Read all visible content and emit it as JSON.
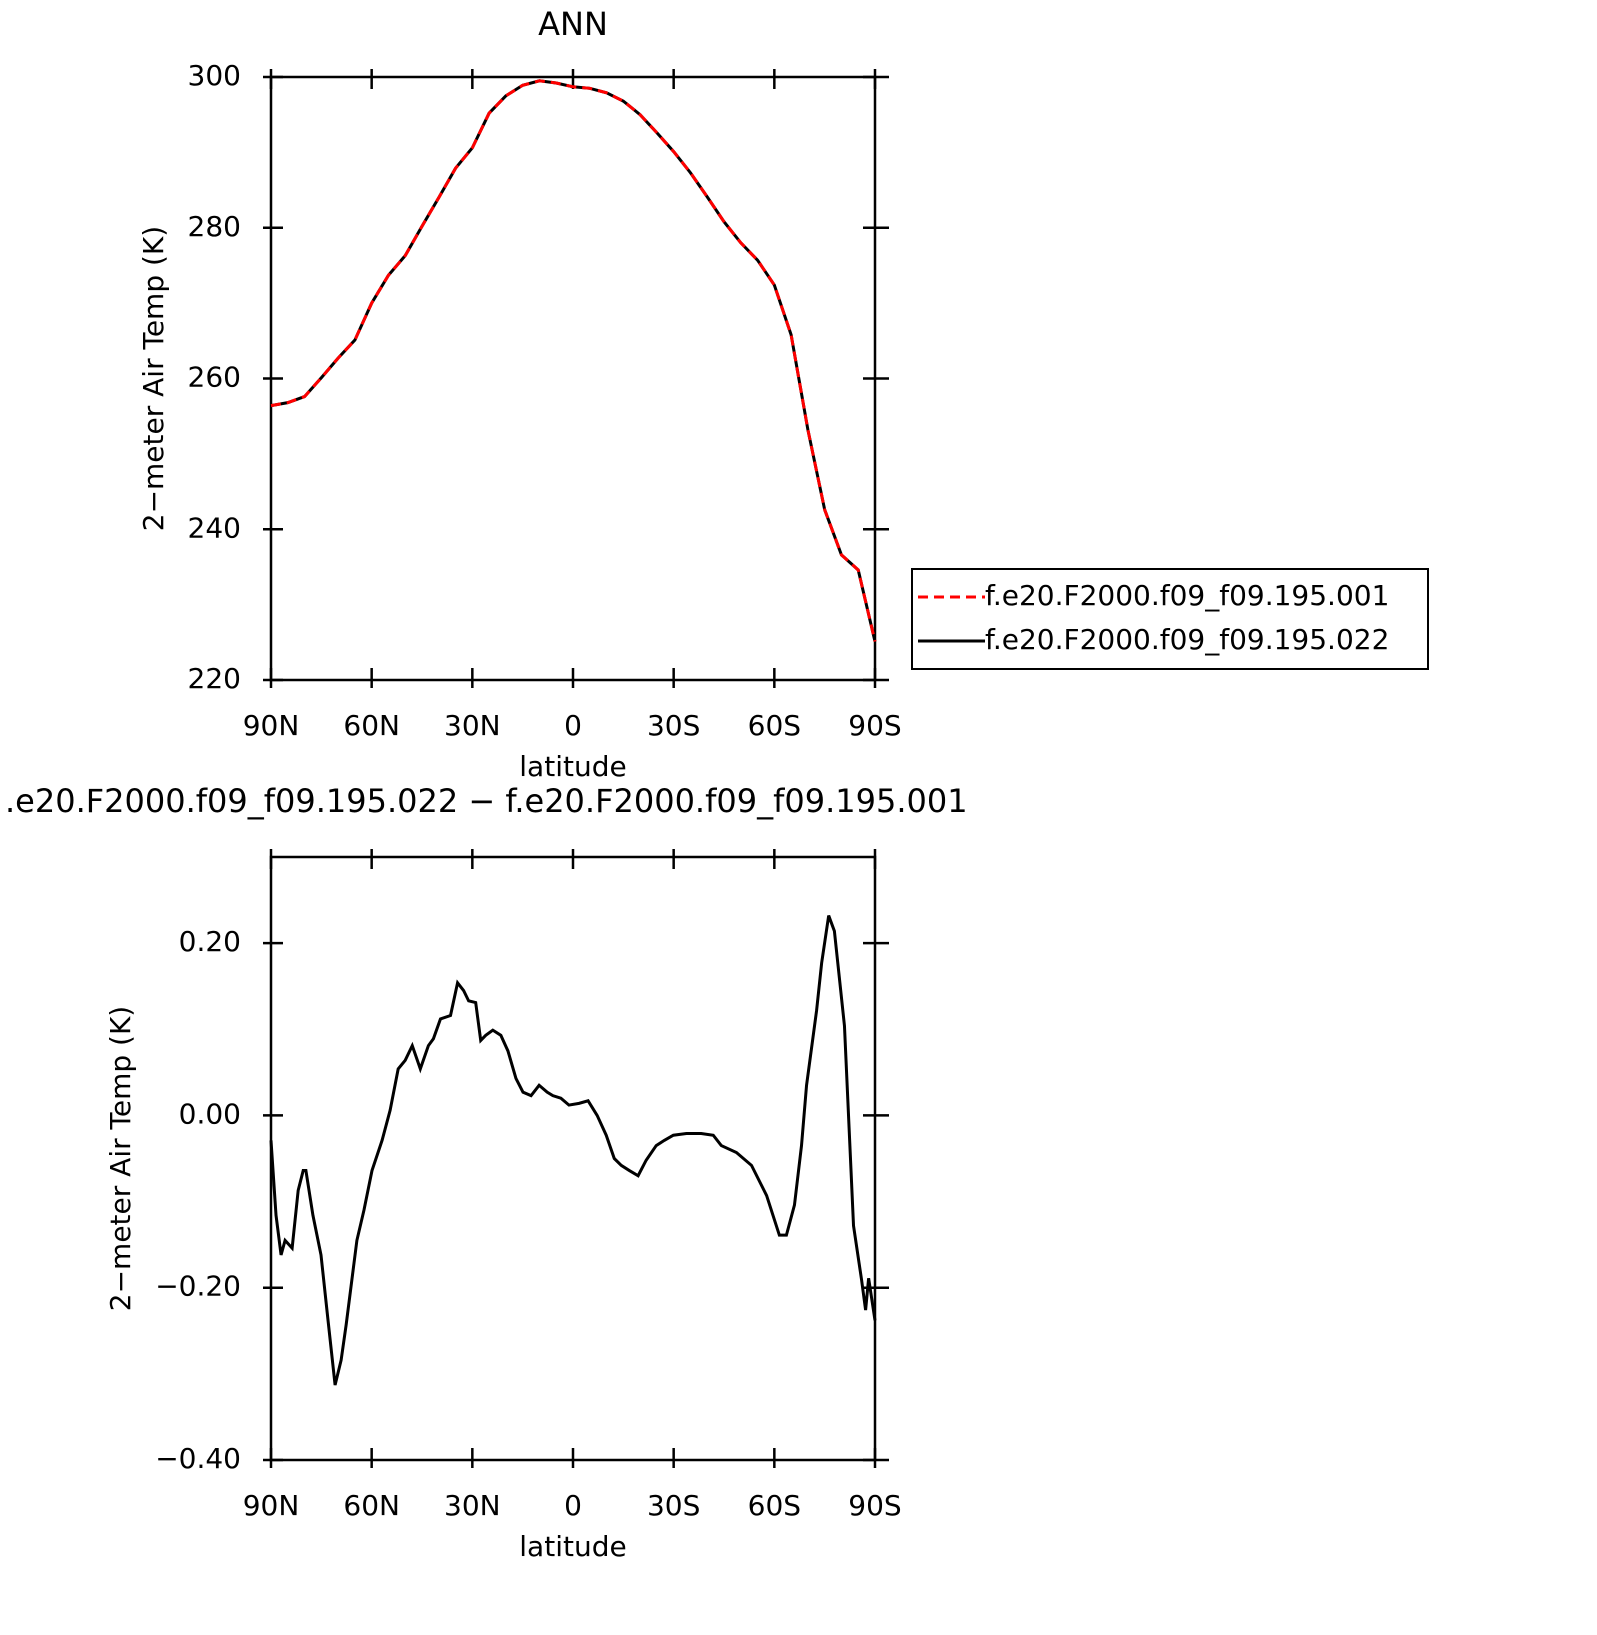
{
  "chart_data": [
    {
      "type": "line",
      "title": "ANN",
      "xlabel": "latitude",
      "ylabel": "2−meter Air Temp (K)",
      "x": [
        90,
        85,
        80,
        75,
        70,
        65,
        60,
        55,
        50,
        45,
        40,
        35,
        30,
        25,
        20,
        15,
        10,
        5,
        0,
        -5,
        -10,
        -15,
        -20,
        -25,
        -30,
        -35,
        -40,
        -45,
        -50,
        -55,
        -60,
        -65,
        -70,
        -75,
        -80,
        -85,
        -90
      ],
      "series": [
        {
          "name": "f.e20.F2000.f09_f09.195.001",
          "color": "#ff0000",
          "dash": true,
          "values": [
            256.4,
            256.8,
            257.6,
            260.1,
            262.7,
            265.1,
            270.0,
            273.7,
            276.3,
            280.2,
            284.0,
            287.9,
            290.6,
            295.2,
            297.5,
            298.9,
            299.5,
            299.2,
            298.7,
            298.5,
            297.9,
            296.8,
            295.0,
            292.6,
            290.1,
            287.3,
            284.1,
            280.8,
            278.0,
            275.7,
            272.4,
            265.8,
            253.2,
            242.6,
            236.6,
            234.6,
            225.1
          ]
        },
        {
          "name": "f.e20.F2000.f09_f09.195.022",
          "color": "#000000",
          "dash": false,
          "values": [
            256.4,
            256.8,
            257.6,
            260.1,
            262.7,
            265.1,
            270.0,
            273.7,
            276.3,
            280.2,
            284.0,
            287.9,
            290.6,
            295.2,
            297.5,
            298.9,
            299.5,
            299.2,
            298.7,
            298.5,
            297.9,
            296.8,
            295.0,
            292.6,
            290.1,
            287.3,
            284.1,
            280.8,
            278.0,
            275.7,
            272.4,
            265.8,
            253.2,
            242.6,
            236.6,
            234.6,
            225.1
          ]
        }
      ],
      "xlim": [
        90,
        -90
      ],
      "xticks": [
        {
          "value": 90,
          "label": "90N"
        },
        {
          "value": 60,
          "label": "60N"
        },
        {
          "value": 30,
          "label": "30N"
        },
        0,
        {
          "value": -30,
          "label": "30S"
        },
        {
          "value": -60,
          "label": "60S"
        },
        {
          "value": -90,
          "label": "90S"
        }
      ],
      "ylim": [
        220,
        300
      ],
      "yticks": [
        220,
        240,
        260,
        280,
        300
      ],
      "legend": "right"
    },
    {
      "type": "line",
      "title": ".e20.F2000.f09_f09.195.022 − f.e20.F2000.f09_f09.195.001",
      "xlabel": "latitude",
      "ylabel": "2−meter Air Temp (K)",
      "x": [
        90,
        88.5,
        87.0,
        85.8,
        83.7,
        81.9,
        80.4,
        79.6,
        77.5,
        75.1,
        73.0,
        70.9,
        69.1,
        67.6,
        64.4,
        62.3,
        59.9,
        56.9,
        54.5,
        52.1,
        50.0,
        47.9,
        45.5,
        43.1,
        41.6,
        39.5,
        36.5,
        34.4,
        32.6,
        31.1,
        29.0,
        27.5,
        26.0,
        23.9,
        21.5,
        19.4,
        17.0,
        14.9,
        12.5,
        10.1,
        7.7,
        6.0,
        3.6,
        1.2,
        -1.8,
        -4.5,
        -7.2,
        -9.9,
        -12.3,
        -14.4,
        -16.8,
        -19.4,
        -21.8,
        -24.8,
        -27.2,
        -29.9,
        -33.8,
        -38.2,
        -41.8,
        -44.2,
        -48.7,
        -53.2,
        -57.7,
        -61.5,
        -63.6,
        -66.0,
        -68.1,
        -69.6,
        -72.6,
        -74.1,
        -76.2,
        -77.9,
        -80.9,
        -83.6,
        -86.0,
        -87.2,
        -88.1,
        -90
      ],
      "values": [
        -0.029,
        -0.116,
        -0.162,
        -0.145,
        -0.154,
        -0.087,
        -0.064,
        -0.064,
        -0.116,
        -0.162,
        -0.238,
        -0.313,
        -0.284,
        -0.243,
        -0.145,
        -0.11,
        -0.064,
        -0.029,
        0.006,
        0.054,
        0.064,
        0.081,
        0.054,
        0.081,
        0.089,
        0.112,
        0.116,
        0.154,
        0.145,
        0.133,
        0.131,
        0.087,
        0.093,
        0.099,
        0.093,
        0.075,
        0.043,
        0.027,
        0.023,
        0.035,
        0.027,
        0.023,
        0.02,
        0.012,
        0.014,
        0.017,
        0,
        -0.023,
        -0.05,
        -0.058,
        -0.064,
        -0.07,
        -0.052,
        -0.035,
        -0.029,
        -0.023,
        -0.021,
        -0.021,
        -0.023,
        -0.035,
        -0.043,
        -0.058,
        -0.093,
        -0.139,
        -0.139,
        -0.104,
        -0.035,
        0.035,
        0.122,
        0.177,
        0.232,
        0.214,
        0.104,
        -0.128,
        -0.191,
        -0.226,
        -0.189,
        -0.238
      ],
      "color": "#000000",
      "xlim": [
        90,
        -90
      ],
      "xticks": [
        {
          "value": 90,
          "label": "90N"
        },
        {
          "value": 60,
          "label": "60N"
        },
        {
          "value": 30,
          "label": "30N"
        },
        0,
        {
          "value": -30,
          "label": "30S"
        },
        {
          "value": -60,
          "label": "60S"
        },
        {
          "value": -90,
          "label": "90S"
        }
      ],
      "ylim": [
        -0.4,
        0.3
      ],
      "yticks": [
        {
          "value": -0.4,
          "label": "−0.40"
        },
        {
          "value": -0.2,
          "label": "−0.20"
        },
        {
          "value": 0,
          "label": "0.00"
        },
        {
          "value": 0.2,
          "label": "0.20"
        }
      ]
    }
  ]
}
